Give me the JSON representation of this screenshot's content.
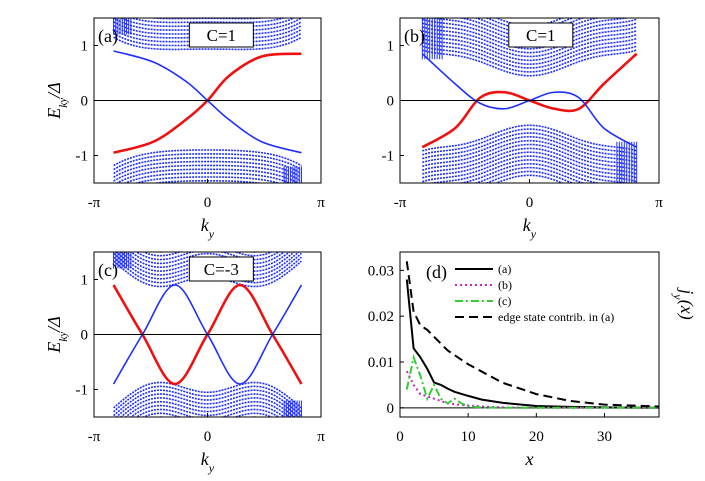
{
  "chart_data": [
    {
      "id": "a",
      "type": "line",
      "panel_label": "(a)",
      "chern_label": "C=1",
      "xlabel": "k_y",
      "ylabel": "E_{k_y}/Δ",
      "xticks": [
        "-π",
        "0",
        "π"
      ],
      "yticks": [
        "-1",
        "0",
        "1"
      ],
      "xlim": [
        -3.1416,
        3.1416
      ],
      "ylim": [
        -1.5,
        1.5
      ],
      "bulk_color": "#1f2fff",
      "edge_color": "#ee1111",
      "bulk_gap": [
        0.9,
        1.0
      ],
      "edge_states": [
        {
          "name": "red edge state",
          "x": [
            -2.6,
            -1.5,
            -0.6,
            0,
            0.6,
            1.5,
            2.6
          ],
          "y": [
            -0.95,
            -0.75,
            -0.35,
            0.0,
            0.45,
            0.8,
            0.85
          ]
        },
        {
          "name": "blue edge state",
          "x": [
            -2.6,
            -1.5,
            -0.6,
            0,
            0.6,
            1.5,
            2.6
          ],
          "y": [
            0.9,
            0.7,
            0.35,
            0.0,
            -0.35,
            -0.75,
            -0.95
          ]
        }
      ]
    },
    {
      "id": "b",
      "type": "line",
      "panel_label": "(b)",
      "chern_label": "C=1",
      "xlabel": "k_y",
      "ylabel": "E_{k_y}/Δ",
      "xticks": [
        "-π",
        "0",
        "π"
      ],
      "yticks": [
        "-1",
        "0",
        "1"
      ],
      "xlim": [
        -3.1416,
        3.1416
      ],
      "ylim": [
        -1.5,
        1.5
      ],
      "bulk_color": "#1f2fff",
      "edge_color": "#ee1111",
      "bulk_gap": [
        0.45,
        0.55
      ],
      "edge_states": [
        {
          "name": "red edge state",
          "x": [
            -2.6,
            -1.8,
            -1.2,
            -0.6,
            0,
            0.6,
            1.2,
            1.8,
            2.6
          ],
          "y": [
            -0.85,
            -0.5,
            0.05,
            0.15,
            0.0,
            -0.15,
            -0.15,
            0.3,
            0.85
          ]
        },
        {
          "name": "blue edge state",
          "x": [
            -2.6,
            -1.8,
            -1.2,
            -0.6,
            0,
            0.6,
            1.2,
            1.8,
            2.6
          ],
          "y": [
            0.85,
            0.3,
            -0.05,
            -0.15,
            0.0,
            0.15,
            0.05,
            -0.5,
            -0.85
          ]
        }
      ]
    },
    {
      "id": "c",
      "type": "line",
      "panel_label": "(c)",
      "chern_label": "C=-3",
      "xlabel": "k_y",
      "ylabel": "E_{k_y}/Δ",
      "xticks": [
        "-π",
        "0",
        "π"
      ],
      "yticks": [
        "-1",
        "0",
        "1"
      ],
      "xlim": [
        -3.1416,
        3.1416
      ],
      "ylim": [
        -1.5,
        1.5
      ],
      "bulk_color": "#1f2fff",
      "edge_color": "#ee1111",
      "bulk_gap": [
        0.85,
        1.0
      ],
      "edge_states": [
        {
          "name": "red edge state",
          "x": [
            -2.6,
            -1.8,
            -0.9,
            0,
            0.9,
            1.8,
            2.6
          ],
          "y": [
            0.9,
            0.0,
            -0.9,
            0.0,
            0.9,
            0.0,
            -0.9
          ]
        },
        {
          "name": "blue edge state",
          "x": [
            -2.6,
            -1.8,
            -0.9,
            0,
            0.9,
            1.8,
            2.6
          ],
          "y": [
            -0.9,
            0.0,
            0.9,
            0.0,
            -0.9,
            0.0,
            0.9
          ]
        }
      ]
    },
    {
      "id": "d",
      "type": "line",
      "panel_label": "(d)",
      "xlabel": "x",
      "ylabel": "j_y(x)",
      "xticks": [
        "0",
        "10",
        "20",
        "30"
      ],
      "yticks": [
        "0",
        "0.01",
        "0.02",
        "0.03"
      ],
      "xlim": [
        0,
        38
      ],
      "ylim": [
        -0.002,
        0.034
      ],
      "series": [
        {
          "name": "(a)",
          "color": "#000000",
          "dash": "solid",
          "x": [
            1,
            2,
            3,
            4,
            5,
            6,
            7,
            8,
            10,
            12,
            15,
            20,
            25,
            30,
            38
          ],
          "y": [
            0.028,
            0.013,
            0.011,
            0.0085,
            0.0055,
            0.005,
            0.0042,
            0.0035,
            0.0026,
            0.0018,
            0.0011,
            0.0004,
            0.0002,
            0.0001,
            0.0
          ]
        },
        {
          "name": "(b)",
          "color": "#cc22cc",
          "dash": "dotted",
          "x": [
            1,
            2,
            3,
            4,
            5,
            6,
            7,
            8,
            10,
            12,
            15,
            20,
            38
          ],
          "y": [
            0.008,
            0.005,
            0.003,
            0.0025,
            0.002,
            0.0015,
            0.001,
            0.0008,
            0.0005,
            0.0003,
            0.0001,
            0.0,
            0.0
          ]
        },
        {
          "name": "(c)",
          "color": "#33cc33",
          "dash": "dashdot",
          "x": [
            1,
            2,
            3,
            4,
            5,
            6,
            7,
            8,
            9,
            10,
            12,
            15,
            20,
            38
          ],
          "y": [
            0.004,
            0.011,
            0.007,
            0.002,
            0.005,
            0.002,
            0.001,
            0.002,
            0.001,
            0.0003,
            0.0001,
            0.0,
            0.0,
            0.0
          ]
        },
        {
          "name": "edge state contrib. in (a)",
          "color": "#000000",
          "dash": "dashed",
          "x": [
            1,
            2,
            3,
            4,
            5,
            7,
            10,
            15,
            20,
            25,
            30,
            38
          ],
          "y": [
            0.032,
            0.021,
            0.018,
            0.017,
            0.0155,
            0.0125,
            0.0095,
            0.0055,
            0.003,
            0.0015,
            0.0007,
            0.0003
          ]
        }
      ]
    }
  ]
}
